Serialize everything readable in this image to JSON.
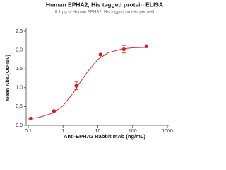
{
  "chart_data": {
    "type": "scatter",
    "title": "Human EPHA2, His tagged protein ELISA",
    "subtitle": "0.1 μg of Human EPHA2, His tagged protein per well",
    "xlabel": "Anti-EPHA2 Rabbit mAb (ng/mL)",
    "ylabel": "Mean Abs.(OD450)",
    "xscale": "log",
    "xlim": [
      0.1,
      1000
    ],
    "xticks": [
      0.1,
      1,
      10,
      100,
      1000
    ],
    "ylim": [
      0,
      2.5
    ],
    "yticks": [
      {
        "value": 0,
        "label": "0.0"
      },
      {
        "value": 0.5,
        "label": "0.5"
      },
      {
        "value": 1,
        "label": "1.0"
      },
      {
        "value": 1.5,
        "label": "1.5"
      },
      {
        "value": 2,
        "label": "2.0"
      },
      {
        "value": 2.5,
        "label": "2.5"
      }
    ],
    "color": "#e0191c",
    "x": [
      0.12,
      0.55,
      2.4,
      12,
      56,
      250
    ],
    "values": [
      0.18,
      0.38,
      1.05,
      1.88,
      2.02,
      2.1
    ],
    "errors": [
      0.02,
      0.02,
      0.1,
      0.03,
      0.1,
      0.03
    ],
    "fit_curve": {
      "x": [
        0.1,
        0.2,
        0.5,
        1,
        2,
        3,
        5,
        10,
        20,
        50,
        100,
        250
      ],
      "values": [
        0.17,
        0.21,
        0.32,
        0.52,
        0.87,
        1.12,
        1.42,
        1.75,
        1.93,
        2.03,
        2.06,
        2.07
      ]
    }
  }
}
